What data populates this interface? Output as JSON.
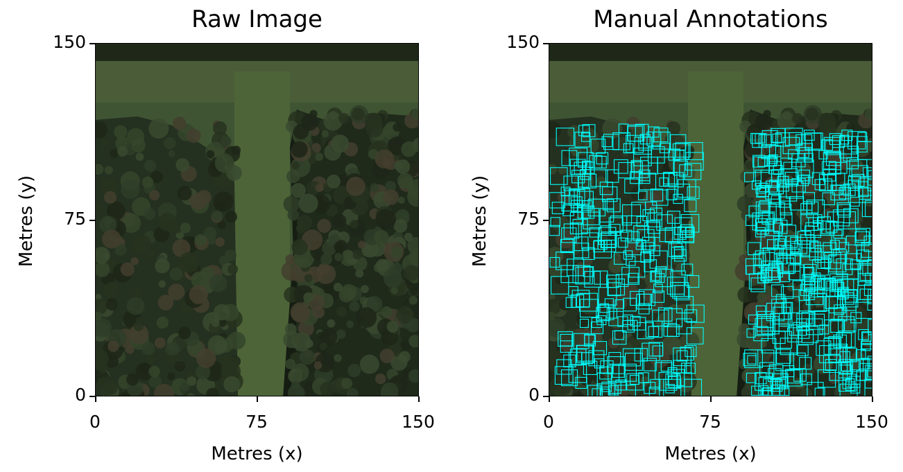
{
  "figure": {
    "panels": [
      {
        "title": "Raw Image",
        "xlabel": "Metres (x)",
        "ylabel": "Metres (y)",
        "xticks": [
          "0",
          "75",
          "150"
        ],
        "yticks": [
          "0",
          "75",
          "150"
        ]
      },
      {
        "title": "Manual Annotations",
        "xlabel": "Metres (x)",
        "ylabel": "Metres (y)",
        "xticks": [
          "0",
          "75",
          "150"
        ],
        "yticks": [
          "0",
          "75",
          "150"
        ]
      }
    ],
    "box_color": "#00ffff"
  }
}
